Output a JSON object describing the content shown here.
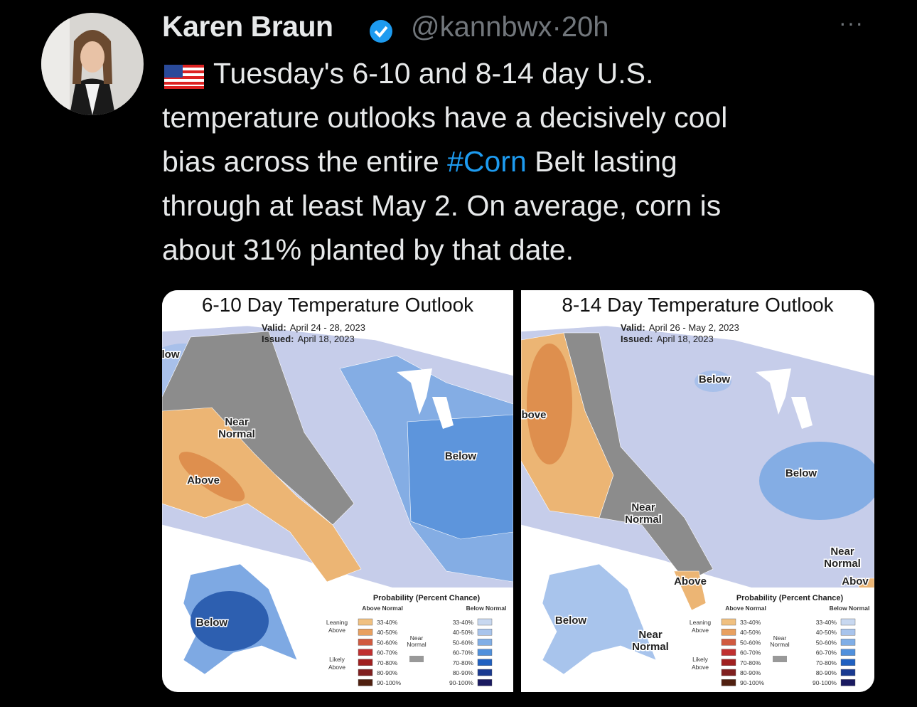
{
  "tweet": {
    "author": "Karen Braun",
    "handle": "@kannbwx",
    "separator": "·",
    "time": "20h",
    "more": "···",
    "body": [
      [
        {
          "text": "Tuesday's 6-10 and 8-14 day U.S."
        }
      ],
      [
        {
          "text": "temperature outlooks have a decisively cool"
        }
      ],
      [
        {
          "text": "bias across the entire "
        },
        {
          "text": "#Corn",
          "link": true
        },
        {
          "text": " Belt lasting"
        }
      ],
      [
        {
          "text": "through at least May 2. On average, corn is"
        }
      ],
      [
        {
          "text": "about 31% planted by that date."
        }
      ]
    ]
  },
  "maps": [
    {
      "title": "6-10 Day Temperature Outlook",
      "valid_label": "Valid:",
      "valid": "April 24 - 28, 2023",
      "issued_label": "Issued:",
      "issued": "April 18, 2023",
      "regions": [
        [
          "low"
        ],
        [
          "Near",
          "Normal"
        ],
        [
          "Above"
        ],
        [
          "Below"
        ],
        [
          "Below"
        ]
      ],
      "legend": {
        "title": "Probability (Percent Chance)",
        "above": "Above Normal",
        "below": "Below Normal",
        "leaning": [
          "Leaning",
          "Above"
        ],
        "likely": [
          "Likely",
          "Above"
        ],
        "near": [
          "Near",
          "Normal"
        ],
        "ranges_above": [
          "33-40%",
          "40-50%",
          "50-60%",
          "60-70%",
          "70-80%",
          "80-90%",
          "90-100%"
        ],
        "ranges_below": [
          "33-40%",
          "40-50%",
          "50-60%",
          "60-70%",
          "70-80%",
          "80-90%",
          "90-100%"
        ],
        "colors_above": [
          "#f0c080",
          "#e8a060",
          "#d05a40",
          "#c03030",
          "#a02020",
          "#802020",
          "#502010"
        ],
        "colors_below": [
          "#c8d8f0",
          "#a8c4ec",
          "#80aee6",
          "#5090dc",
          "#2060c0",
          "#1a3a90",
          "#1a1a60"
        ]
      }
    },
    {
      "title": "8-14 Day Temperature Outlook",
      "valid_label": "Valid:",
      "valid": "April 26 - May 2, 2023",
      "issued_label": "Issued:",
      "issued": "April 18, 2023",
      "regions": [
        [
          "bove"
        ],
        [
          "Below"
        ],
        [
          "Below"
        ],
        [
          "Near",
          "Normal"
        ],
        [
          "Near",
          "Normal"
        ],
        [
          "Above"
        ],
        [
          "Abov"
        ],
        [
          "Below"
        ],
        [
          "Near",
          "Normal"
        ]
      ],
      "legend": {
        "title": "Probability (Percent Chance)",
        "above": "Above Normal",
        "below": "Below Normal",
        "leaning": [
          "Leaning",
          "Above"
        ],
        "likely": [
          "Likely",
          "Above"
        ],
        "near": [
          "Near",
          "Normal"
        ],
        "ranges_above": [
          "33-40%",
          "40-50%",
          "50-60%",
          "60-70%",
          "70-80%",
          "80-90%",
          "90-100%"
        ],
        "ranges_below": [
          "33-40%",
          "40-50%",
          "50-60%",
          "60-70%",
          "70-80%",
          "80-90%",
          "90-100%"
        ],
        "colors_above": [
          "#f0c080",
          "#e8a060",
          "#d05a40",
          "#c03030",
          "#a02020",
          "#802020",
          "#502010"
        ],
        "colors_below": [
          "#c8d8f0",
          "#a8c4ec",
          "#80aee6",
          "#5090dc",
          "#2060c0",
          "#1a3a90",
          "#1a1a60"
        ]
      }
    }
  ]
}
